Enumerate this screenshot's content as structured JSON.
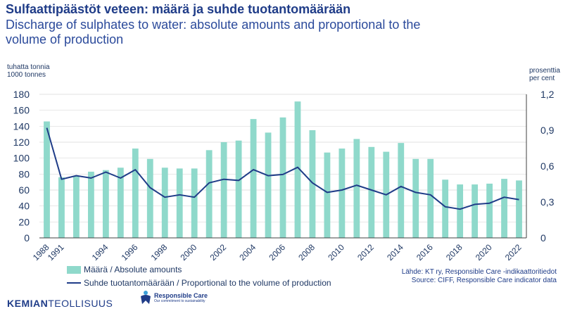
{
  "title": "Sulfaattipäästöt veteen: määrä ja suhde tuotantomäärään",
  "subtitle": "Discharge of sulphates to water: absolute amounts and proportional to the volume of production",
  "unit_left": [
    "tuhatta tonnia",
    "1000 tonnes"
  ],
  "unit_right": [
    "prosenttia",
    "per cent"
  ],
  "legend": {
    "bars": "Määrä / Absolute amounts",
    "line": "Suhde tuotantomäärään / Proportional to the volume of production"
  },
  "sources": [
    "Lähde: KT ry, Responsible Care -indikaattoritiedot",
    "Source: CIFF, Responsible Care indicator data"
  ],
  "logos": {
    "kt_bold": "KEMIAN",
    "kt_rest": "TEOLLISUUS",
    "rc_name": "Responsible Care",
    "rc_tagline": "Our commitment to sustainability"
  },
  "colors": {
    "bars": "#8fd9cb",
    "line": "#1f3c88",
    "axis_text": "#1f3864",
    "grid": "#d9d9d9"
  },
  "chart_data": {
    "type": "bar",
    "categories": [
      "1988",
      "1991",
      "1992",
      "1993",
      "1994",
      "1995",
      "1996",
      "1997",
      "1998",
      "1999",
      "2000",
      "2001",
      "2002",
      "2003",
      "2004",
      "2005",
      "2006",
      "2007",
      "2008",
      "2009",
      "2010",
      "2011",
      "2012",
      "2013",
      "2014",
      "2015",
      "2016",
      "2017",
      "2018",
      "2019",
      "2020",
      "2021",
      "2022"
    ],
    "x_tick_labels": [
      "1988",
      "1991",
      "1994",
      "1996",
      "1998",
      "2000",
      "2002",
      "2004",
      "2006",
      "2008",
      "2010",
      "2012",
      "2014",
      "2016",
      "2018",
      "2020",
      "2022"
    ],
    "series": [
      {
        "name": "Määrä / Absolute amounts",
        "type": "bar",
        "axis": "left",
        "values": [
          146,
          76,
          78,
          83,
          85,
          88,
          112,
          99,
          88,
          87,
          87,
          110,
          120,
          122,
          149,
          132,
          151,
          171,
          135,
          107,
          112,
          124,
          114,
          108,
          119,
          99,
          99,
          73,
          67,
          67,
          68,
          74,
          72
        ]
      },
      {
        "name": "Suhde tuotantomäärään / Proportional to the volume of production",
        "type": "line",
        "axis": "right",
        "values": [
          0.92,
          0.49,
          0.52,
          0.5,
          0.55,
          0.5,
          0.57,
          0.42,
          0.34,
          0.36,
          0.34,
          0.46,
          0.49,
          0.48,
          0.57,
          0.52,
          0.53,
          0.59,
          0.46,
          0.38,
          0.4,
          0.44,
          0.4,
          0.36,
          0.43,
          0.38,
          0.36,
          0.26,
          0.24,
          0.28,
          0.29,
          0.34,
          0.32
        ]
      }
    ],
    "y_left": {
      "lim": [
        0,
        180
      ],
      "ticks": [
        0,
        20,
        40,
        60,
        80,
        100,
        120,
        140,
        160,
        180
      ]
    },
    "y_right": {
      "lim": [
        0,
        1.2
      ],
      "ticks": [
        "0",
        "0,3",
        "0,6",
        "0,9",
        "1,2"
      ]
    },
    "grid": true,
    "legend_position": "bottom-left"
  }
}
